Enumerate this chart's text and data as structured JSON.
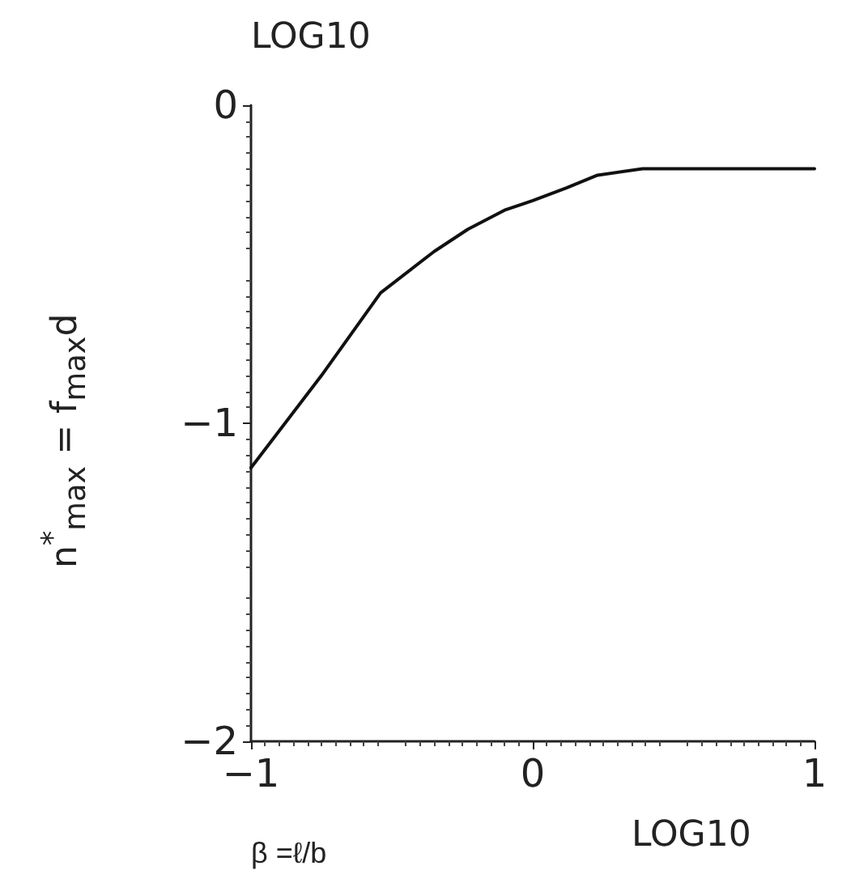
{
  "chart_data": {
    "type": "line",
    "xlabel": "β =ℓ/b",
    "ylabel": "n$^{*}$$_{max}$ = f$_{max}$d",
    "annotations": [
      "LOG10",
      "LOG10"
    ],
    "x": [
      -1,
      -0.75,
      -0.54,
      -0.35,
      -0.23,
      -0.1,
      0,
      0.12,
      0.23,
      0.39,
      0.6,
      0.8,
      1
    ],
    "series": [
      {
        "color": "#111111",
        "values": [
          -1.14,
          -0.85,
          -0.59,
          -0.46,
          -0.39,
          -0.33,
          -0.3,
          -0.26,
          -0.22,
          -0.2,
          -0.2,
          -0.2,
          -0.2
        ]
      }
    ],
    "xlim": [
      -1,
      1
    ],
    "xticks": [
      -1,
      0,
      1
    ],
    "ylim": [
      -2,
      0
    ],
    "yticks": [
      -2,
      -1,
      0
    ],
    "grid": false,
    "marker": "none",
    "line_style": "solid"
  }
}
